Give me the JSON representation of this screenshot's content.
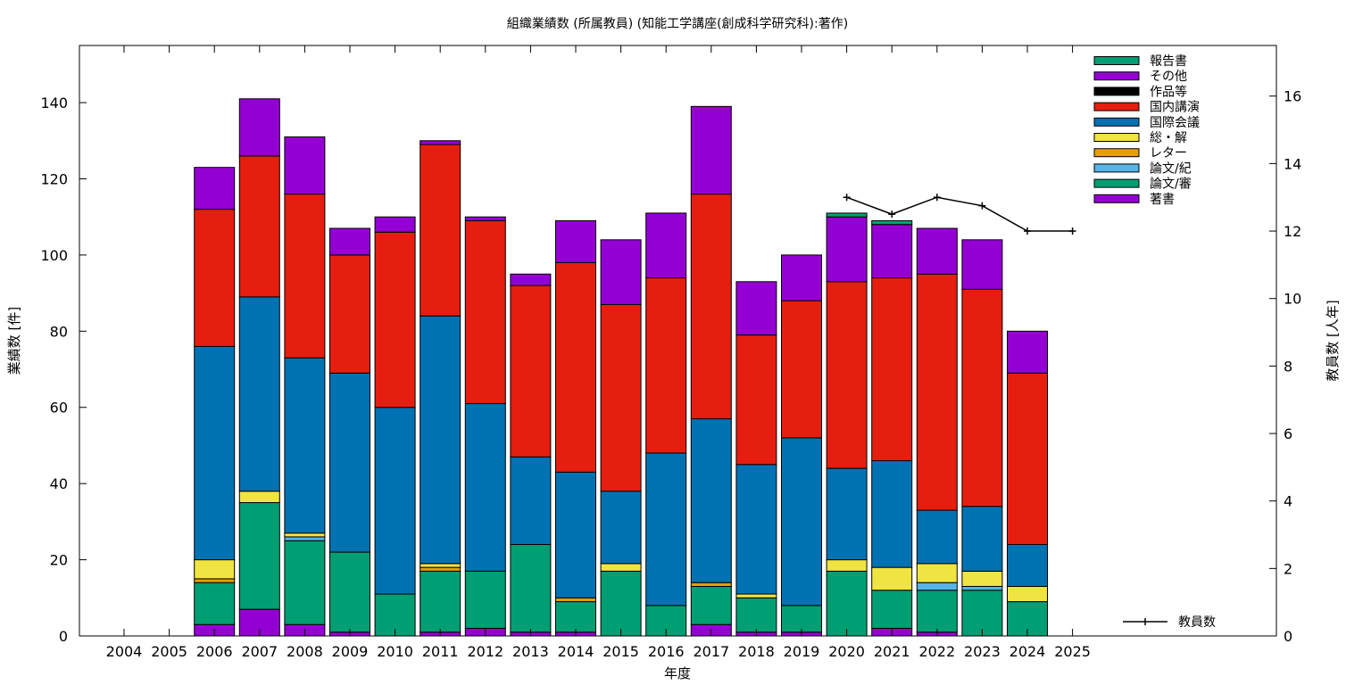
{
  "chart_data": {
    "type": "bar",
    "stacked": true,
    "title": "組織業績数 (所属教員) (知能工学講座(創成科学研究科):著作)",
    "xlabel": "年度",
    "ylabel": "業績数 [件]",
    "y2label": "教員数 [人年]",
    "categories": [
      "2004",
      "2005",
      "2006",
      "2007",
      "2008",
      "2009",
      "2010",
      "2011",
      "2012",
      "2013",
      "2014",
      "2015",
      "2016",
      "2017",
      "2018",
      "2019",
      "2020",
      "2021",
      "2022",
      "2023",
      "2024",
      "2025"
    ],
    "ylim": [
      0,
      155
    ],
    "yticks": [
      0,
      20,
      40,
      60,
      80,
      100,
      120,
      140
    ],
    "y2lim": [
      0,
      17.5
    ],
    "y2ticks": [
      0,
      2,
      4,
      6,
      8,
      10,
      12,
      14,
      16
    ],
    "legend_position": "top-right",
    "series": [
      {
        "name": "著書",
        "color": "#9400d3",
        "values": [
          0,
          0,
          3,
          7,
          3,
          1,
          0,
          1,
          2,
          1,
          1,
          0,
          0,
          3,
          1,
          1,
          0,
          2,
          1,
          0,
          0,
          0
        ]
      },
      {
        "name": "論文/審",
        "color": "#009e73",
        "values": [
          0,
          0,
          11,
          28,
          22,
          21,
          11,
          16,
          15,
          23,
          8,
          17,
          8,
          10,
          9,
          7,
          17,
          10,
          11,
          12,
          9,
          0
        ]
      },
      {
        "name": "論文/紀",
        "color": "#56b4e9",
        "values": [
          0,
          0,
          0,
          0,
          1,
          0,
          0,
          0,
          0,
          0,
          0,
          0,
          0,
          0,
          0,
          0,
          0,
          0,
          2,
          1,
          0,
          0
        ]
      },
      {
        "name": "レター",
        "color": "#e69f00",
        "values": [
          0,
          0,
          1,
          0,
          0,
          0,
          0,
          1,
          0,
          0,
          1,
          0,
          0,
          1,
          0,
          0,
          0,
          0,
          0,
          0,
          0,
          0
        ]
      },
      {
        "name": "総・解",
        "color": "#f0e442",
        "values": [
          0,
          0,
          5,
          3,
          1,
          0,
          0,
          1,
          0,
          0,
          0,
          2,
          0,
          0,
          1,
          0,
          3,
          6,
          5,
          4,
          4,
          0
        ]
      },
      {
        "name": "国際会議",
        "color": "#0072b2",
        "values": [
          0,
          0,
          56,
          51,
          46,
          47,
          49,
          65,
          44,
          23,
          33,
          19,
          40,
          43,
          34,
          44,
          24,
          28,
          14,
          17,
          11,
          0
        ]
      },
      {
        "name": "国内講演",
        "color": "#e51e10",
        "values": [
          0,
          0,
          36,
          37,
          43,
          31,
          46,
          45,
          48,
          45,
          55,
          49,
          46,
          59,
          34,
          36,
          49,
          48,
          62,
          57,
          45,
          0
        ]
      },
      {
        "name": "作品等",
        "color": "#000000",
        "values": [
          0,
          0,
          0,
          0,
          0,
          0,
          0,
          0,
          0,
          0,
          0,
          0,
          0,
          0,
          0,
          0,
          0,
          0,
          0,
          0,
          0,
          0
        ]
      },
      {
        "name": "その他",
        "color": "#9400d3",
        "values": [
          0,
          0,
          11,
          15,
          15,
          7,
          4,
          1,
          1,
          3,
          11,
          17,
          17,
          23,
          14,
          12,
          17,
          14,
          12,
          13,
          11,
          0
        ]
      },
      {
        "name": "報告書",
        "color": "#009e73",
        "values": [
          0,
          0,
          0,
          0,
          0,
          0,
          0,
          0,
          0,
          0,
          0,
          0,
          0,
          0,
          0,
          0,
          1,
          1,
          0,
          0,
          0,
          0
        ]
      }
    ],
    "line_series": {
      "name": "教員数",
      "color": "#000000",
      "x": [
        "2020",
        "2021",
        "2022",
        "2023",
        "2024",
        "2025"
      ],
      "values": [
        13,
        12.5,
        13,
        12.75,
        12,
        12
      ]
    }
  }
}
